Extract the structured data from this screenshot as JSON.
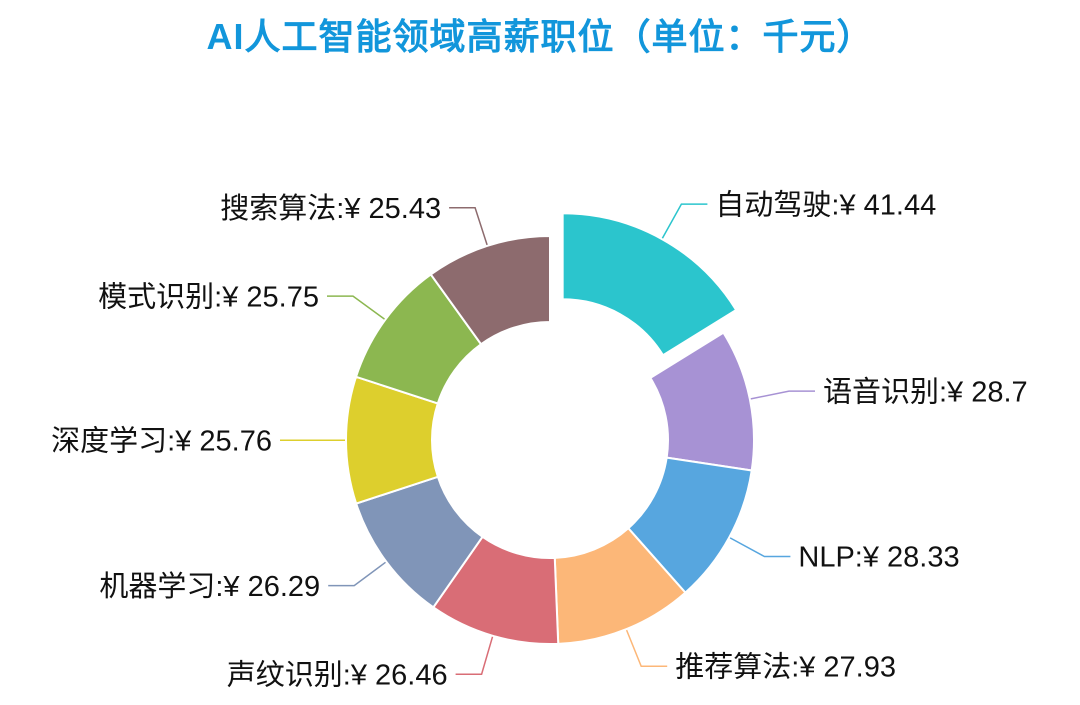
{
  "title": "AI人工智能领域高薪职位（单位：千元）",
  "title_color": "#1296db",
  "background_color": "#ffffff",
  "chart_data": {
    "type": "pie",
    "subtype": "donut",
    "title": "AI人工智能领域高薪职位（单位：千元）",
    "unit": "千元",
    "direction": "clockwise",
    "start_angle": "top",
    "legend_position": "none",
    "label_color": "#111111",
    "label_format": "{name}:¥ {value}",
    "slices": [
      {
        "name": "自动驾驶",
        "value": 41.44,
        "label": "自动驾驶:¥ 41.44",
        "color": "#2bc5cd",
        "exploded": true,
        "label_side": "right"
      },
      {
        "name": "语音识别",
        "value": 28.7,
        "label": "语音识别:¥ 28.7",
        "color": "#a792d4",
        "exploded": false,
        "label_side": "right"
      },
      {
        "name": "NLP",
        "value": 28.33,
        "label": "NLP:¥ 28.33",
        "color": "#57a6df",
        "exploded": false,
        "label_side": "right"
      },
      {
        "name": "推荐算法",
        "value": 27.93,
        "label": "推荐算法:¥ 27.93",
        "color": "#fcb778",
        "exploded": false,
        "label_side": "right"
      },
      {
        "name": "声纹识别",
        "value": 26.46,
        "label": "声纹识别:¥ 26.46",
        "color": "#d96d76",
        "exploded": false,
        "label_side": "left"
      },
      {
        "name": "机器学习",
        "value": 26.29,
        "label": "机器学习:¥ 26.29",
        "color": "#8095b8",
        "exploded": false,
        "label_side": "left"
      },
      {
        "name": "深度学习",
        "value": 25.76,
        "label": "深度学习:¥ 25.76",
        "color": "#ddcf2d",
        "exploded": false,
        "label_side": "left"
      },
      {
        "name": "模式识别",
        "value": 25.75,
        "label": "模式识别:¥ 25.75",
        "color": "#8cb750",
        "exploded": false,
        "label_side": "left"
      },
      {
        "name": "搜索算法",
        "value": 25.43,
        "label": "搜索算法:¥ 25.43",
        "color": "#8d6b6e",
        "exploded": false,
        "label_side": "left"
      }
    ]
  }
}
